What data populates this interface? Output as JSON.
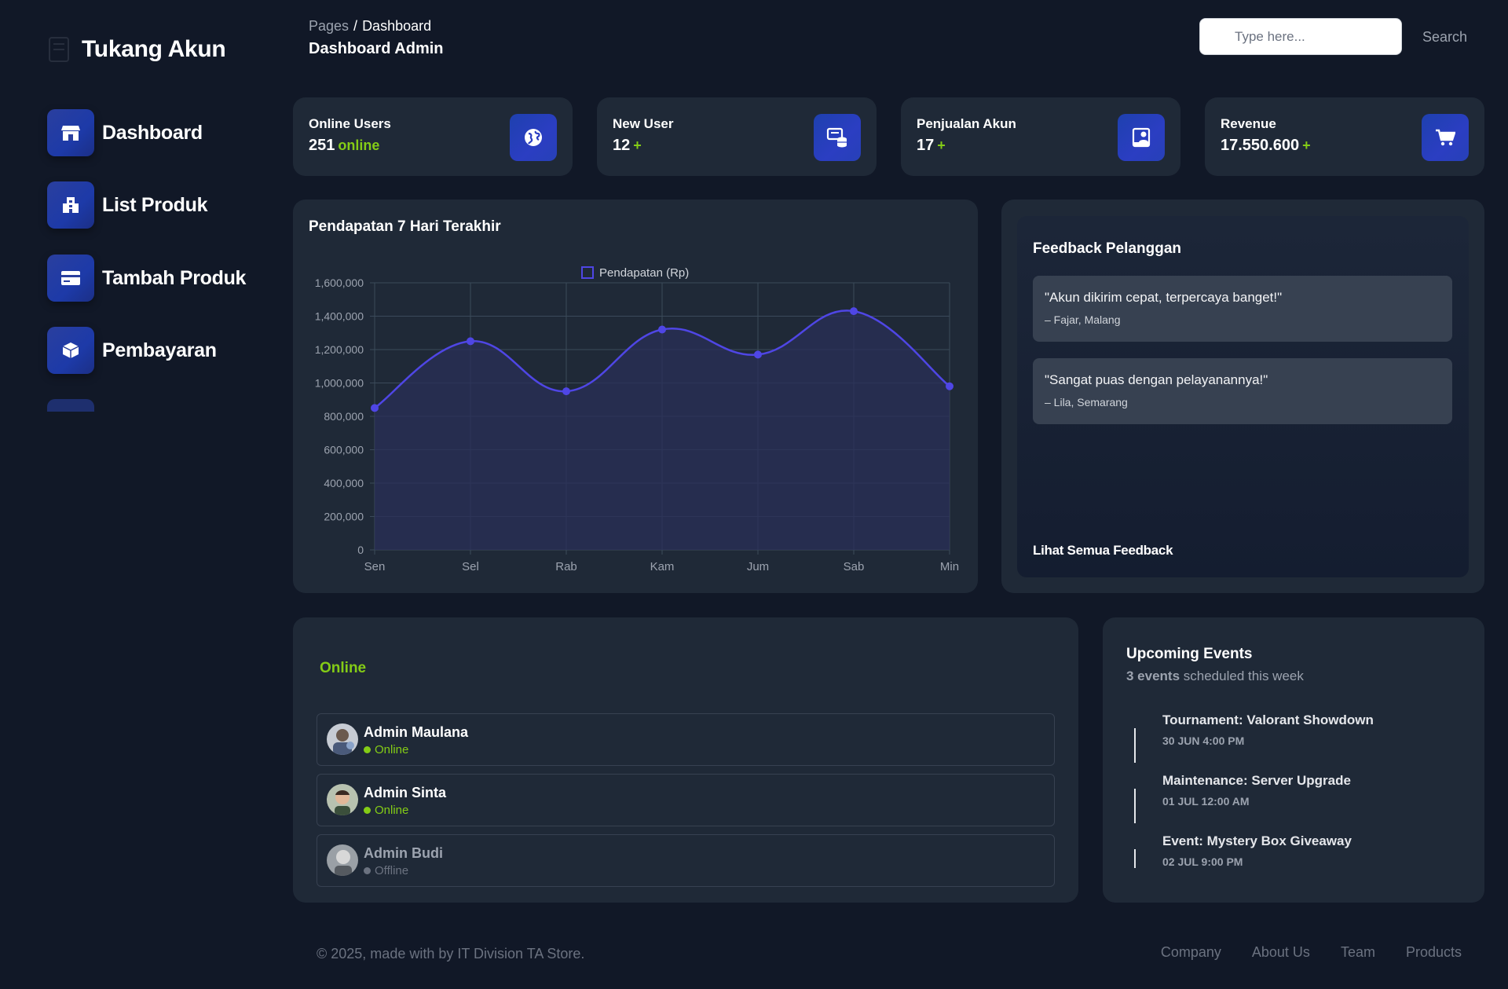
{
  "brand": {
    "name": "Tukang Akun"
  },
  "sidebar": {
    "items": [
      {
        "label": "Dashboard",
        "icon": "store-icon"
      },
      {
        "label": "List Produk",
        "icon": "building-icon"
      },
      {
        "label": "Tambah Produk",
        "icon": "credit-card-icon"
      },
      {
        "label": "Pembayaran",
        "icon": "box-icon"
      }
    ]
  },
  "header": {
    "breadcrumb_root": "Pages",
    "breadcrumb_sep": "/",
    "breadcrumb_current": "Dashboard",
    "title": "Dashboard Admin"
  },
  "search": {
    "placeholder": "Type here...",
    "button_label": "Search"
  },
  "stats": [
    {
      "title": "Online Users",
      "value": "251",
      "accent": "online",
      "icon": "globe-icon"
    },
    {
      "title": "New User",
      "value": "12",
      "accent": "+",
      "icon": "database-icon"
    },
    {
      "title": "Penjualan Akun",
      "value": "17",
      "accent": "+",
      "icon": "user-badge-icon"
    },
    {
      "title": "Revenue",
      "value": "17.550.600",
      "accent": "+",
      "icon": "cart-icon"
    }
  ],
  "chart_card": {
    "title": "Pendapatan 7 Hari Terakhir"
  },
  "chart_data": {
    "type": "line",
    "title": "Pendapatan 7 Hari Terakhir",
    "categories": [
      "Sen",
      "Sel",
      "Rab",
      "Kam",
      "Jum",
      "Sab",
      "Min"
    ],
    "series": [
      {
        "name": "Pendapatan (Rp)",
        "values": [
          850000,
          1250000,
          950000,
          1320000,
          1170000,
          1430000,
          980000
        ]
      }
    ],
    "ylim": [
      0,
      1600000
    ],
    "yticks": [
      "0",
      "200,000",
      "400,000",
      "600,000",
      "800,000",
      "1,000,000",
      "1,200,000",
      "1,400,000",
      "1,600,000"
    ],
    "grid": true,
    "legend": "top-center",
    "colors": {
      "line": "#4f46e5",
      "fill": "#2a2f58"
    }
  },
  "feedback": {
    "title": "Feedback Pelanggan",
    "items": [
      {
        "quote": "\"Akun dikirim cepat, terpercaya banget!\"",
        "author": "– Fajar, Malang"
      },
      {
        "quote": "\"Sangat puas dengan pelayanannya!\"",
        "author": "– Lila, Semarang"
      }
    ],
    "link": "Lihat Semua Feedback"
  },
  "online": {
    "title": "Online",
    "users": [
      {
        "name": "Admin Maulana",
        "status": "Online"
      },
      {
        "name": "Admin Sinta",
        "status": "Online"
      },
      {
        "name": "Admin Budi",
        "status": "Offline"
      }
    ]
  },
  "events": {
    "title": "Upcoming Events",
    "count": "3 events",
    "subtitle_rest": " scheduled this week",
    "items": [
      {
        "title": "Tournament: Valorant Showdown",
        "time": "30 JUN 4:00 PM"
      },
      {
        "title": "Maintenance: Server Upgrade",
        "time": "01 JUL 12:00 AM"
      },
      {
        "title": "Event: Mystery Box Giveaway",
        "time": "02 JUL 9:00 PM"
      }
    ]
  },
  "footer": {
    "copyright": "© 2025, made with by IT Division TA Store.",
    "links": [
      "Company",
      "About Us",
      "Team",
      "Products"
    ]
  },
  "colors": {
    "background": "#111827",
    "card": "#1f2937",
    "accent_green": "#84cc16",
    "accent_blue": "#1e40af",
    "offline_gray": "#9ca3af"
  }
}
